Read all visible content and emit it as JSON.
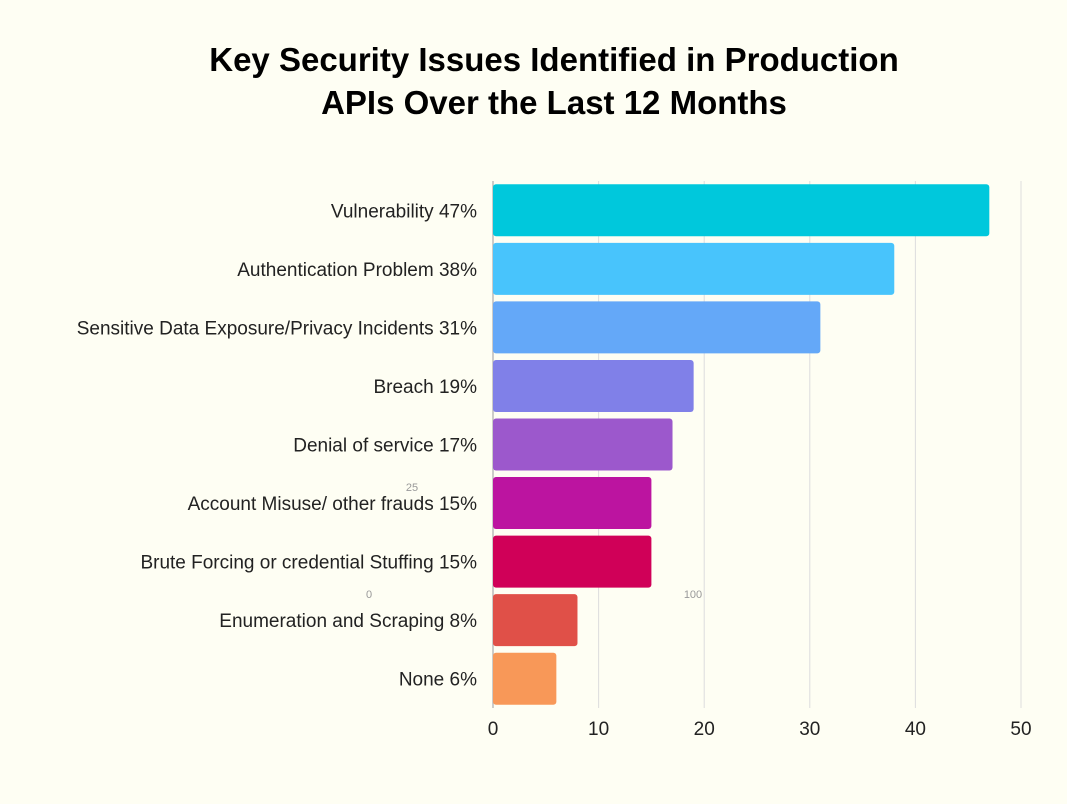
{
  "chart_data": {
    "type": "bar",
    "orientation": "horizontal",
    "title_lines": [
      "Key Security Issues Identified in Production",
      "APIs Over the Last 12 Months"
    ],
    "categories": [
      "Vulnerability 47%",
      "Authentication Problem 38%",
      "Sensitive Data Exposure/Privacy Incidents 31%",
      "Breach 19%",
      "Denial of service 17%",
      "Account Misuse/ other frauds 15%",
      "Brute Forcing or credential Stuffing 15%",
      "Enumeration and Scraping 8%",
      "None 6%"
    ],
    "values": [
      47,
      38,
      31,
      19,
      17,
      15,
      15,
      8,
      6
    ],
    "colors": [
      "#00c8dc",
      "#48c4fc",
      "#64a8f8",
      "#8080e8",
      "#9c58cc",
      "#bc14a0",
      "#d00058",
      "#e05048",
      "#f89858"
    ],
    "xlim": [
      0,
      50
    ],
    "xticks": [
      0,
      10,
      20,
      30,
      40,
      50
    ],
    "grid": true,
    "xlabel": "",
    "ylabel": "",
    "stray_labels": [
      "25",
      "0",
      "100"
    ]
  }
}
